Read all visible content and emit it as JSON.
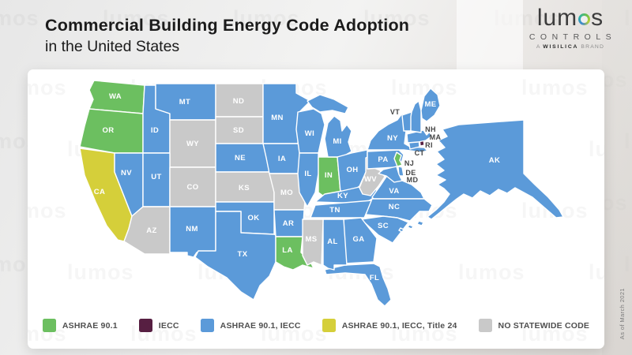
{
  "header": {
    "title_line1": "Commercial Building Energy Code Adoption",
    "title_line2": "in the United States"
  },
  "logo": {
    "brand_prefix": "lum",
    "brand_suffix": "s",
    "ring_colors": [
      "#3f87d2",
      "#2fb3a4",
      "#6abf4a",
      "#b9d037"
    ],
    "controls": "CONTROLS",
    "tagline_a": "A",
    "tagline_wisilica": "WISILICA",
    "tagline_brand": "BRAND"
  },
  "watermark_text": "lumos",
  "footnote": "As of March 2021",
  "legend": [
    {
      "key": "ashrae_901",
      "label": "ASHRAE 90.1",
      "color": "#6cbf60"
    },
    {
      "key": "iecc",
      "label": "IECC",
      "color": "#571f42"
    },
    {
      "key": "ashrae_901_iecc",
      "label": "ASHRAE 90.1, IECC",
      "color": "#5b9ad9"
    },
    {
      "key": "ashrae_901_iecc_title24",
      "label": "ASHRAE 90.1, IECC, Title 24",
      "color": "#d5cf3a"
    },
    {
      "key": "no_statewide_code",
      "label": "NO STATEWIDE CODE",
      "color": "#c9c9c9"
    }
  ],
  "map": {
    "states": [
      {
        "abbr": "WA",
        "category": "ashrae_901"
      },
      {
        "abbr": "OR",
        "category": "ashrae_901"
      },
      {
        "abbr": "CA",
        "category": "ashrae_901_iecc_title24"
      },
      {
        "abbr": "NV",
        "category": "ashrae_901_iecc"
      },
      {
        "abbr": "ID",
        "category": "ashrae_901_iecc"
      },
      {
        "abbr": "MT",
        "category": "ashrae_901_iecc"
      },
      {
        "abbr": "WY",
        "category": "no_statewide_code"
      },
      {
        "abbr": "UT",
        "category": "ashrae_901_iecc"
      },
      {
        "abbr": "CO",
        "category": "no_statewide_code"
      },
      {
        "abbr": "AZ",
        "category": "no_statewide_code"
      },
      {
        "abbr": "NM",
        "category": "ashrae_901_iecc"
      },
      {
        "abbr": "ND",
        "category": "no_statewide_code"
      },
      {
        "abbr": "SD",
        "category": "no_statewide_code"
      },
      {
        "abbr": "NE",
        "category": "ashrae_901_iecc"
      },
      {
        "abbr": "KS",
        "category": "no_statewide_code"
      },
      {
        "abbr": "OK",
        "category": "ashrae_901_iecc"
      },
      {
        "abbr": "TX",
        "category": "ashrae_901_iecc"
      },
      {
        "abbr": "MN",
        "category": "ashrae_901_iecc"
      },
      {
        "abbr": "IA",
        "category": "ashrae_901_iecc"
      },
      {
        "abbr": "MO",
        "category": "no_statewide_code"
      },
      {
        "abbr": "AR",
        "category": "ashrae_901_iecc"
      },
      {
        "abbr": "LA",
        "category": "ashrae_901"
      },
      {
        "abbr": "WI",
        "category": "ashrae_901_iecc"
      },
      {
        "abbr": "IL",
        "category": "ashrae_901_iecc"
      },
      {
        "abbr": "IN",
        "category": "ashrae_901"
      },
      {
        "abbr": "MI",
        "category": "ashrae_901_iecc"
      },
      {
        "abbr": "OH",
        "category": "ashrae_901_iecc"
      },
      {
        "abbr": "KY",
        "category": "ashrae_901_iecc"
      },
      {
        "abbr": "TN",
        "category": "ashrae_901_iecc"
      },
      {
        "abbr": "WV",
        "category": "no_statewide_code"
      },
      {
        "abbr": "VA",
        "category": "ashrae_901_iecc"
      },
      {
        "abbr": "NC",
        "category": "ashrae_901_iecc"
      },
      {
        "abbr": "SC",
        "category": "ashrae_901_iecc"
      },
      {
        "abbr": "GA",
        "category": "ashrae_901_iecc"
      },
      {
        "abbr": "FL",
        "category": "ashrae_901_iecc"
      },
      {
        "abbr": "AL",
        "category": "ashrae_901_iecc"
      },
      {
        "abbr": "MS",
        "category": "no_statewide_code"
      },
      {
        "abbr": "PA",
        "category": "ashrae_901_iecc"
      },
      {
        "abbr": "NY",
        "category": "ashrae_901_iecc"
      },
      {
        "abbr": "NJ",
        "category": "ashrae_901"
      },
      {
        "abbr": "DE",
        "category": "ashrae_901_iecc"
      },
      {
        "abbr": "MD",
        "category": "ashrae_901_iecc"
      },
      {
        "abbr": "CT",
        "category": "ashrae_901_iecc"
      },
      {
        "abbr": "RI",
        "category": "iecc"
      },
      {
        "abbr": "MA",
        "category": "ashrae_901_iecc"
      },
      {
        "abbr": "VT",
        "category": "ashrae_901_iecc"
      },
      {
        "abbr": "NH",
        "category": "ashrae_901_iecc"
      },
      {
        "abbr": "ME",
        "category": "ashrae_901_iecc"
      },
      {
        "abbr": "AK",
        "category": "ashrae_901_iecc"
      }
    ]
  }
}
